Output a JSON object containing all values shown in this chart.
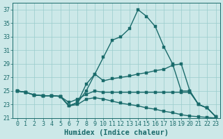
{
  "xlabel": "Humidex (Indice chaleur)",
  "bg_color": "#cce8e8",
  "grid_color": "#99cccc",
  "line_color": "#1a6b6b",
  "xlim": [
    -0.5,
    23.5
  ],
  "ylim": [
    21,
    38
  ],
  "yticks": [
    21,
    23,
    25,
    27,
    29,
    31,
    33,
    35,
    37
  ],
  "xticks": [
    0,
    1,
    2,
    3,
    4,
    5,
    6,
    7,
    8,
    9,
    10,
    11,
    12,
    13,
    14,
    15,
    16,
    17,
    18,
    19,
    20,
    21,
    22,
    23
  ],
  "curves": [
    {
      "y": [
        25.0,
        24.8,
        24.4,
        24.3,
        24.3,
        24.2,
        22.8,
        23.3,
        26.0,
        27.5,
        30.0,
        32.5,
        33.0,
        34.2,
        37.0,
        36.0,
        34.5,
        31.5,
        29.0,
        25.0,
        25.0,
        23.0,
        22.5,
        21.2
      ]
    },
    {
      "y": [
        25.0,
        24.8,
        24.4,
        24.3,
        24.3,
        24.2,
        22.8,
        23.3,
        25.0,
        27.5,
        26.5,
        26.8,
        27.0,
        27.2,
        27.5,
        27.7,
        28.0,
        28.2,
        28.8,
        29.0,
        25.0,
        23.0,
        22.5,
        21.2
      ]
    },
    {
      "y": [
        25.0,
        24.8,
        24.4,
        24.3,
        24.3,
        24.2,
        23.3,
        23.8,
        24.5,
        25.0,
        24.8,
        24.8,
        24.8,
        24.8,
        24.8,
        24.8,
        24.8,
        24.8,
        24.8,
        24.8,
        24.8,
        23.0,
        22.5,
        21.2
      ]
    },
    {
      "y": [
        25.0,
        24.8,
        24.4,
        24.3,
        24.3,
        24.2,
        22.8,
        23.0,
        23.8,
        24.0,
        23.8,
        23.5,
        23.2,
        23.0,
        22.8,
        22.5,
        22.3,
        22.0,
        21.8,
        21.5,
        21.3,
        21.2,
        21.1,
        21.0
      ]
    }
  ],
  "marker_size": 2.5,
  "line_width": 1.0,
  "font_color": "#1a6b6b",
  "tick_fontsize": 6.0,
  "label_fontsize": 7.5
}
